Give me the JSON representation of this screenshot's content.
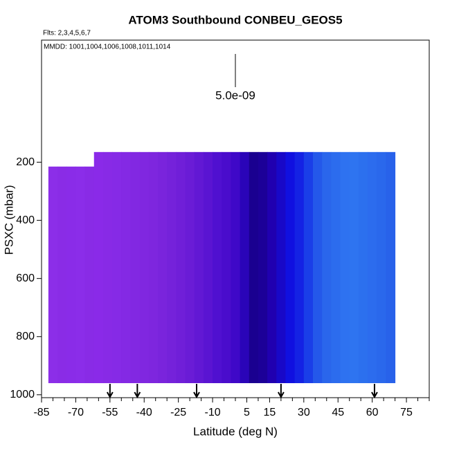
{
  "chart_data": {
    "type": "curtain",
    "title": "ATOM3 Southbound CONBEU_GEOS5",
    "subtitle": "Flts: 2,3,4,5,6,7",
    "annotation": "MMDD: 1001,1004,1006,1008,1011,1014",
    "scale_label": "5.0e-09",
    "xlabel": "Latitude (deg N)",
    "ylabel": "PSXC (mbar)",
    "xlim": [
      -85,
      85
    ],
    "ylim": [
      1010,
      -220
    ],
    "xticks": [
      -85,
      -70,
      -55,
      -40,
      -25,
      -10,
      5,
      15,
      30,
      45,
      60,
      75
    ],
    "xminorticks": [
      -80,
      -75,
      -65,
      -60,
      -50,
      -45,
      -35,
      -30,
      -20,
      -15,
      -5,
      0,
      10,
      20,
      25,
      35,
      40,
      50,
      55,
      65,
      70,
      80,
      85
    ],
    "yticks": [
      200,
      400,
      600,
      800,
      1000
    ],
    "lat_edges": [
      -82,
      -78,
      -74,
      -70,
      -66,
      -62,
      -58,
      -54,
      -50,
      -46,
      -42,
      -38,
      -34,
      -30,
      -26,
      -22,
      -18,
      -14,
      -10,
      -6,
      -2,
      2,
      6,
      10,
      14,
      18,
      22,
      26,
      30,
      34,
      38,
      42,
      46,
      50,
      54,
      58,
      62,
      66,
      70
    ],
    "tops": [
      215,
      215,
      215,
      215,
      215,
      165,
      165,
      165,
      165,
      165,
      165,
      165,
      165,
      165,
      165,
      165,
      165,
      165,
      165,
      165,
      165,
      165,
      165,
      165,
      165,
      165,
      165,
      165,
      165,
      165,
      165,
      165,
      165,
      165,
      165,
      165,
      165,
      165
    ],
    "bottom": 960,
    "colors": [
      "#8c2ee8",
      "#8a2ce6",
      "#8a2ce8",
      "#8b2de9",
      "#892be6",
      "#8a2ae8",
      "#882ae6",
      "#862ae6",
      "#8429e4",
      "#8228e2",
      "#8027e0",
      "#7e26de",
      "#7a24dc",
      "#7522da",
      "#701fd8",
      "#6a1cd6",
      "#6218d4",
      "#5a14d2",
      "#5010d0",
      "#4a0ccc",
      "#3f08c8",
      "#2a04b8",
      "#1a0090",
      "#1c0098",
      "#2000b0",
      "#1808c8",
      "#1010e0",
      "#1422e4",
      "#1a3ee8",
      "#2458ea",
      "#2a66ec",
      "#2c6cee",
      "#2e72f0",
      "#2e74f0",
      "#2c70ee",
      "#2c6cee",
      "#2a68ec",
      "#2862ea"
    ],
    "arrows": [
      -55,
      -43,
      -17,
      20,
      61
    ]
  }
}
